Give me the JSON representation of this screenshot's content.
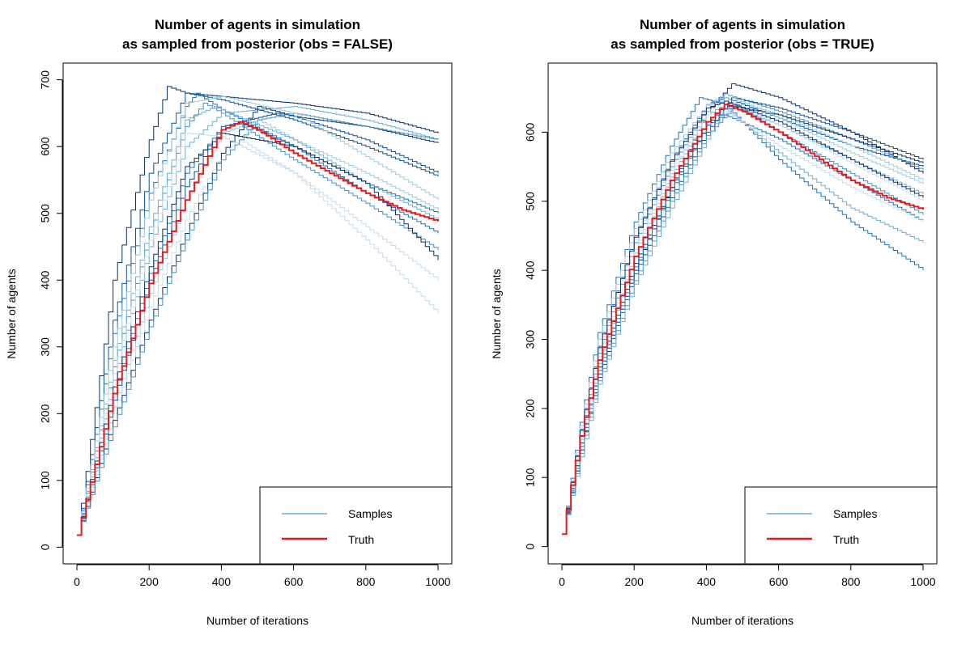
{
  "colors": {
    "truth": "#e41a1c",
    "palette": [
      "#08306b",
      "#08519c",
      "#2171b5",
      "#4292c6",
      "#6baed6",
      "#9ecae1",
      "#c6dbef"
    ]
  },
  "legend": {
    "samples": "Samples",
    "truth": "Truth"
  },
  "chart_data": [
    {
      "type": "line",
      "title": "Number of agents in simulation",
      "subtitle": "as sampled from posterior (obs = FALSE)",
      "xlabel": "Number of iterations",
      "ylabel": "Number of agents",
      "xlim": [
        0,
        1000
      ],
      "ylim": [
        -25,
        725
      ],
      "xticks": [
        0,
        200,
        400,
        600,
        800,
        1000
      ],
      "yticks": [
        0,
        100,
        200,
        300,
        400,
        500,
        600,
        700
      ],
      "legend_position": "bottom-right",
      "grid": false,
      "truth": {
        "name": "Truth",
        "x": [
          0,
          100,
          200,
          300,
          400,
          450,
          500,
          600,
          700,
          800,
          900,
          1000
        ],
        "y": [
          18,
          230,
          395,
          520,
          625,
          637,
          625,
          590,
          560,
          530,
          505,
          488
        ]
      },
      "series": [
        {
          "x": [
            0,
            100,
            200,
            250,
            300,
            400,
            600,
            800,
            1000
          ],
          "y": [
            18,
            400,
            610,
            690,
            680,
            675,
            665,
            650,
            620
          ]
        },
        {
          "x": [
            0,
            100,
            200,
            300,
            400,
            600,
            800,
            1000
          ],
          "y": [
            18,
            340,
            560,
            680,
            670,
            640,
            600,
            555
          ]
        },
        {
          "x": [
            0,
            100,
            200,
            300,
            330,
            400,
            600,
            800,
            1000
          ],
          "y": [
            18,
            320,
            530,
            660,
            680,
            655,
            600,
            545,
            500
          ]
        },
        {
          "x": [
            0,
            100,
            200,
            300,
            350,
            400,
            600,
            800,
            1000
          ],
          "y": [
            18,
            270,
            470,
            630,
            665,
            650,
            580,
            515,
            445
          ]
        },
        {
          "x": [
            0,
            100,
            200,
            300,
            400,
            600,
            800,
            1000
          ],
          "y": [
            18,
            250,
            450,
            600,
            650,
            660,
            640,
            610
          ]
        },
        {
          "x": [
            0,
            100,
            200,
            300,
            400,
            500,
            600,
            800,
            1000
          ],
          "y": [
            18,
            210,
            380,
            520,
            620,
            640,
            610,
            560,
            505
          ]
        },
        {
          "x": [
            0,
            100,
            200,
            300,
            400,
            450,
            600,
            800,
            1000
          ],
          "y": [
            18,
            200,
            360,
            490,
            590,
            610,
            560,
            460,
            350
          ]
        },
        {
          "x": [
            0,
            100,
            200,
            300,
            400,
            500,
            600,
            800,
            1000
          ],
          "y": [
            18,
            190,
            340,
            470,
            590,
            660,
            645,
            630,
            605
          ]
        },
        {
          "x": [
            0,
            100,
            200,
            300,
            400,
            550,
            600,
            800,
            1000
          ],
          "y": [
            18,
            220,
            400,
            540,
            630,
            650,
            645,
            610,
            560
          ]
        },
        {
          "x": [
            0,
            100,
            200,
            300,
            400,
            450,
            600,
            800,
            1000
          ],
          "y": [
            18,
            230,
            410,
            560,
            630,
            635,
            600,
            530,
            470
          ]
        },
        {
          "x": [
            0,
            100,
            200,
            300,
            400,
            500,
            600,
            800,
            1000
          ],
          "y": [
            18,
            180,
            330,
            460,
            580,
            640,
            650,
            630,
            610
          ]
        },
        {
          "x": [
            0,
            100,
            200,
            300,
            380,
            400,
            600,
            800,
            1000
          ],
          "y": [
            18,
            280,
            480,
            640,
            660,
            655,
            610,
            545,
            490
          ]
        },
        {
          "x": [
            0,
            100,
            200,
            300,
            400,
            600,
            800,
            1000
          ],
          "y": [
            18,
            300,
            520,
            665,
            675,
            650,
            585,
            520
          ]
        },
        {
          "x": [
            0,
            100,
            200,
            300,
            400,
            600,
            800,
            1000
          ],
          "y": [
            18,
            260,
            460,
            620,
            615,
            560,
            480,
            400
          ]
        },
        {
          "x": [
            0,
            100,
            200,
            300,
            400,
            600,
            800,
            1000
          ],
          "y": [
            18,
            240,
            420,
            570,
            620,
            600,
            545,
            430
          ]
        }
      ]
    },
    {
      "type": "line",
      "title": "Number of agents in simulation",
      "subtitle": "as sampled from posterior (obs = TRUE)",
      "xlabel": "Number of iterations",
      "ylabel": "Number of agents",
      "xlim": [
        0,
        1000
      ],
      "ylim": [
        -25,
        700
      ],
      "xticks": [
        0,
        200,
        400,
        600,
        800,
        1000
      ],
      "yticks": [
        0,
        100,
        200,
        300,
        400,
        500,
        600
      ],
      "legend_position": "bottom-right",
      "grid": false,
      "truth": {
        "name": "Truth",
        "x": [
          0,
          50,
          100,
          200,
          300,
          400,
          450,
          500,
          600,
          700,
          800,
          900,
          1000
        ],
        "y": [
          18,
          160,
          270,
          420,
          530,
          615,
          640,
          630,
          600,
          565,
          530,
          505,
          488
        ]
      },
      "series": [
        {
          "x": [
            0,
            50,
            100,
            200,
            300,
            400,
            470,
            600,
            800,
            1000
          ],
          "y": [
            18,
            140,
            250,
            400,
            520,
            630,
            670,
            650,
            600,
            540
          ]
        },
        {
          "x": [
            0,
            50,
            100,
            200,
            300,
            400,
            450,
            600,
            800,
            1000
          ],
          "y": [
            18,
            170,
            290,
            450,
            560,
            640,
            650,
            620,
            580,
            550
          ]
        },
        {
          "x": [
            0,
            50,
            100,
            200,
            300,
            380,
            450,
            600,
            800,
            1000
          ],
          "y": [
            18,
            180,
            310,
            470,
            580,
            650,
            640,
            560,
            470,
            400
          ]
        },
        {
          "x": [
            0,
            50,
            100,
            200,
            300,
            400,
            450,
            600,
            800,
            1000
          ],
          "y": [
            18,
            160,
            280,
            440,
            550,
            635,
            655,
            630,
            590,
            545
          ]
        },
        {
          "x": [
            0,
            50,
            100,
            200,
            300,
            400,
            450,
            600,
            800,
            1000
          ],
          "y": [
            18,
            150,
            265,
            420,
            535,
            625,
            640,
            610,
            560,
            510
          ]
        },
        {
          "x": [
            0,
            50,
            100,
            200,
            300,
            400,
            450,
            600,
            800,
            1000
          ],
          "y": [
            18,
            155,
            270,
            425,
            540,
            630,
            650,
            625,
            580,
            530
          ]
        },
        {
          "x": [
            0,
            50,
            100,
            200,
            300,
            400,
            450,
            600,
            800,
            1000
          ],
          "y": [
            18,
            165,
            285,
            445,
            555,
            638,
            645,
            610,
            555,
            500
          ]
        },
        {
          "x": [
            0,
            50,
            100,
            200,
            300,
            400,
            450,
            600,
            800,
            1000
          ],
          "y": [
            18,
            150,
            260,
            410,
            520,
            610,
            640,
            625,
            590,
            555
          ]
        },
        {
          "x": [
            0,
            50,
            100,
            200,
            300,
            400,
            470,
            600,
            800,
            1000
          ],
          "y": [
            18,
            140,
            245,
            395,
            505,
            600,
            650,
            635,
            600,
            560
          ]
        },
        {
          "x": [
            0,
            50,
            100,
            200,
            300,
            400,
            450,
            600,
            800,
            1000
          ],
          "y": [
            18,
            145,
            255,
            405,
            515,
            610,
            625,
            590,
            530,
            470
          ]
        },
        {
          "x": [
            0,
            50,
            100,
            200,
            300,
            400,
            480,
            600,
            800,
            1000
          ],
          "y": [
            18,
            135,
            240,
            385,
            500,
            595,
            640,
            600,
            540,
            480
          ]
        },
        {
          "x": [
            0,
            50,
            100,
            200,
            300,
            400,
            450,
            600,
            800,
            1000
          ],
          "y": [
            18,
            130,
            235,
            380,
            490,
            590,
            635,
            570,
            490,
            440
          ]
        },
        {
          "x": [
            0,
            50,
            100,
            200,
            300,
            400,
            450,
            600,
            800,
            1000
          ],
          "y": [
            18,
            175,
            300,
            460,
            570,
            640,
            655,
            620,
            570,
            525
          ]
        },
        {
          "x": [
            0,
            50,
            100,
            200,
            300,
            400,
            450,
            600,
            800,
            1000
          ],
          "y": [
            18,
            160,
            275,
            430,
            545,
            625,
            630,
            580,
            520,
            470
          ]
        },
        {
          "x": [
            0,
            50,
            100,
            200,
            300,
            400,
            450,
            600,
            800,
            1000
          ],
          "y": [
            18,
            168,
            288,
            448,
            558,
            635,
            645,
            615,
            560,
            505
          ]
        }
      ]
    }
  ]
}
